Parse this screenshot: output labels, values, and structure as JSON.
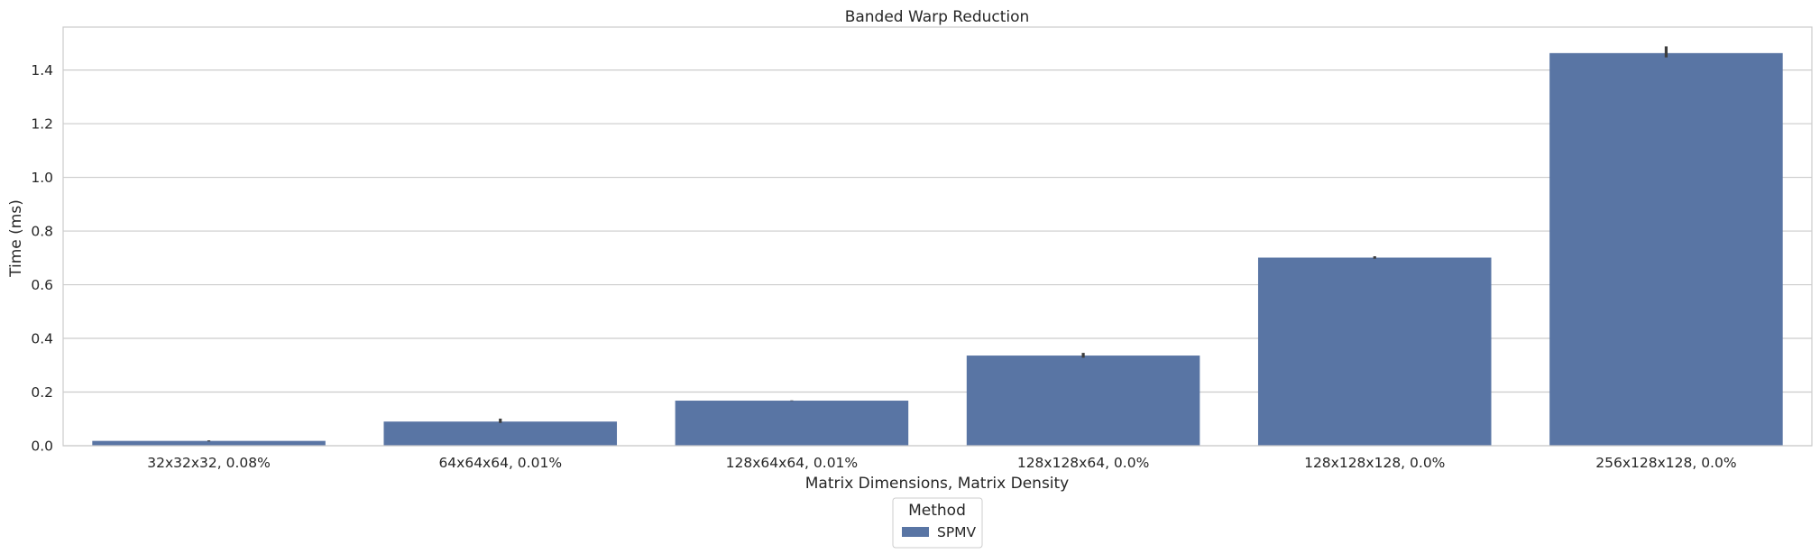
{
  "chart_data": {
    "type": "bar",
    "title": "Banded Warp Reduction",
    "xlabel": "Matrix Dimensions, Matrix Density",
    "ylabel": "Time (ms)",
    "ylim": [
      0,
      1.56
    ],
    "yticks": [
      0.0,
      0.2,
      0.4,
      0.6,
      0.8,
      1.0,
      1.2,
      1.4
    ],
    "ytick_labels": [
      "0.0",
      "0.2",
      "0.4",
      "0.6",
      "0.8",
      "1.0",
      "1.2",
      "1.4"
    ],
    "grid": true,
    "categories": [
      "32x32x32, 0.08%",
      "64x64x64, 0.01%",
      "128x64x64, 0.01%",
      "128x128x64, 0.0%",
      "128x128x128, 0.0%",
      "256x128x128, 0.0%"
    ],
    "series": [
      {
        "name": "SPMV",
        "color": "#5975a4",
        "values": [
          0.018,
          0.09,
          0.168,
          0.336,
          0.701,
          1.463
        ],
        "error_low": [
          0.016,
          0.085,
          0.167,
          0.328,
          0.697,
          1.447
        ],
        "error_high": [
          0.02,
          0.101,
          0.169,
          0.346,
          0.706,
          1.488
        ]
      }
    ],
    "legend": {
      "title": "Method",
      "placement": "bottom-center"
    }
  }
}
